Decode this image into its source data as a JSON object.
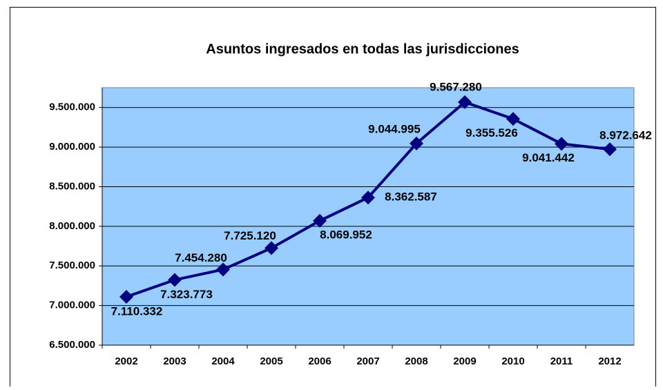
{
  "chart_data": {
    "type": "line",
    "title": "Asuntos ingresados en todas las jurisdicciones",
    "categories": [
      "2002",
      "2003",
      "2004",
      "2005",
      "2006",
      "2007",
      "2008",
      "2009",
      "2010",
      "2011",
      "2012"
    ],
    "values": [
      7110332,
      7323773,
      7454280,
      7725120,
      8069952,
      8362587,
      9044995,
      9567280,
      9355526,
      9041442,
      8972642
    ],
    "value_labels": [
      "7.110.332",
      "7.323.773",
      "7.454.280",
      "7.725.120",
      "8.069.952",
      "8.362.587",
      "9.044.995",
      "9.567.280",
      "9.355.526",
      "9.041.442",
      "8.972.642"
    ],
    "color": "#000080",
    "plot_background": "#99ccff",
    "ylim": [
      6500000,
      9750000
    ],
    "yticks": [
      {
        "value": 6500000,
        "label": "6.500.000"
      },
      {
        "value": 7000000,
        "label": "7.000.000"
      },
      {
        "value": 7500000,
        "label": "7.500.000"
      },
      {
        "value": 8000000,
        "label": "8.000.000"
      },
      {
        "value": 8500000,
        "label": "8.500.000"
      },
      {
        "value": 9000000,
        "label": "9.000.000"
      },
      {
        "value": 9500000,
        "label": "9.500.000"
      }
    ],
    "grid": true
  }
}
